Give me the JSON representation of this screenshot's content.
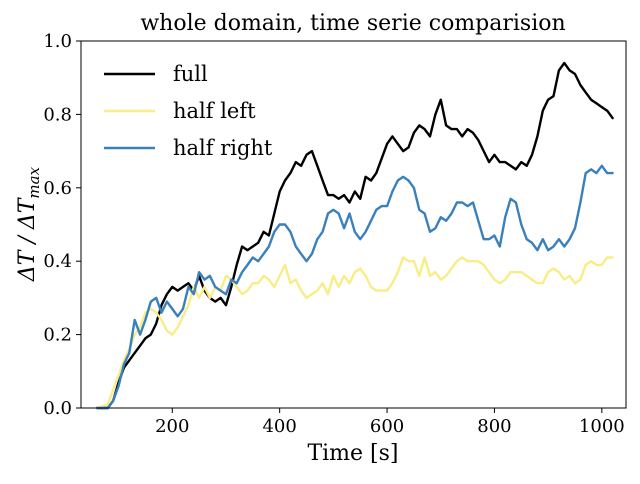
{
  "chart_data": {
    "type": "line",
    "title": "whole domain, time serie comparision",
    "xlabel": "Time [s]",
    "ylabel": "ΔT / ΔT",
    "ylabel_subscript": "max",
    "xlim": [
      30,
      1045
    ],
    "ylim": [
      0.0,
      1.0
    ],
    "xticks": [
      200,
      400,
      600,
      800,
      1000
    ],
    "xtick_labels": [
      "200",
      "400",
      "600",
      "800",
      "1000"
    ],
    "yticks": [
      0.0,
      0.2,
      0.4,
      0.6,
      0.8,
      1.0
    ],
    "ytick_labels": [
      "0.0",
      "0.2",
      "0.4",
      "0.6",
      "0.8",
      "1.0"
    ],
    "grid": false,
    "legend_position": "top-left",
    "series": [
      {
        "name": "full",
        "color": "#000000",
        "x": [
          60,
          80,
          90,
          100,
          110,
          120,
          130,
          140,
          150,
          160,
          170,
          180,
          190,
          200,
          210,
          220,
          230,
          240,
          250,
          260,
          270,
          280,
          290,
          300,
          310,
          320,
          330,
          340,
          350,
          360,
          370,
          380,
          390,
          400,
          410,
          420,
          430,
          440,
          450,
          460,
          470,
          480,
          490,
          500,
          510,
          520,
          530,
          540,
          550,
          560,
          570,
          580,
          590,
          600,
          610,
          620,
          630,
          640,
          650,
          660,
          670,
          680,
          690,
          700,
          710,
          720,
          730,
          740,
          750,
          760,
          770,
          780,
          790,
          800,
          810,
          820,
          830,
          840,
          850,
          860,
          870,
          880,
          890,
          900,
          910,
          920,
          930,
          940,
          950,
          960,
          970,
          980,
          990,
          1000,
          1010,
          1020
        ],
        "y": [
          0.0,
          0.0,
          0.02,
          0.07,
          0.11,
          0.13,
          0.15,
          0.17,
          0.19,
          0.2,
          0.23,
          0.28,
          0.31,
          0.33,
          0.32,
          0.33,
          0.34,
          0.32,
          0.36,
          0.32,
          0.3,
          0.29,
          0.3,
          0.28,
          0.33,
          0.39,
          0.44,
          0.43,
          0.44,
          0.45,
          0.48,
          0.47,
          0.53,
          0.59,
          0.62,
          0.64,
          0.67,
          0.66,
          0.69,
          0.7,
          0.66,
          0.62,
          0.58,
          0.58,
          0.57,
          0.58,
          0.56,
          0.59,
          0.57,
          0.63,
          0.62,
          0.64,
          0.68,
          0.72,
          0.74,
          0.72,
          0.7,
          0.71,
          0.75,
          0.77,
          0.76,
          0.74,
          0.8,
          0.84,
          0.77,
          0.76,
          0.76,
          0.74,
          0.76,
          0.75,
          0.73,
          0.7,
          0.67,
          0.69,
          0.67,
          0.67,
          0.66,
          0.65,
          0.67,
          0.66,
          0.69,
          0.74,
          0.81,
          0.84,
          0.85,
          0.92,
          0.94,
          0.92,
          0.91,
          0.88,
          0.86,
          0.84,
          0.83,
          0.82,
          0.81,
          0.79
        ]
      },
      {
        "name": "half left",
        "color": "#f8ed86",
        "x": [
          60,
          80,
          90,
          100,
          110,
          120,
          130,
          140,
          150,
          160,
          170,
          180,
          190,
          200,
          210,
          220,
          230,
          240,
          250,
          260,
          270,
          280,
          290,
          300,
          310,
          320,
          330,
          340,
          350,
          360,
          370,
          380,
          390,
          400,
          410,
          420,
          430,
          440,
          450,
          460,
          470,
          480,
          490,
          500,
          510,
          520,
          530,
          540,
          550,
          560,
          570,
          580,
          590,
          600,
          610,
          620,
          630,
          640,
          650,
          660,
          670,
          680,
          690,
          700,
          710,
          720,
          730,
          740,
          750,
          760,
          770,
          780,
          790,
          800,
          810,
          820,
          830,
          840,
          850,
          860,
          870,
          880,
          890,
          900,
          910,
          920,
          930,
          940,
          950,
          960,
          970,
          980,
          990,
          1000,
          1010,
          1020
        ],
        "y": [
          0.0,
          0.01,
          0.05,
          0.09,
          0.13,
          0.16,
          0.2,
          0.22,
          0.26,
          0.27,
          0.26,
          0.24,
          0.21,
          0.2,
          0.22,
          0.25,
          0.28,
          0.33,
          0.3,
          0.33,
          0.3,
          0.33,
          0.32,
          0.36,
          0.35,
          0.33,
          0.31,
          0.32,
          0.34,
          0.34,
          0.36,
          0.35,
          0.33,
          0.36,
          0.39,
          0.34,
          0.35,
          0.32,
          0.3,
          0.31,
          0.32,
          0.34,
          0.31,
          0.36,
          0.33,
          0.36,
          0.34,
          0.37,
          0.38,
          0.36,
          0.33,
          0.32,
          0.32,
          0.32,
          0.34,
          0.37,
          0.41,
          0.4,
          0.4,
          0.36,
          0.41,
          0.36,
          0.37,
          0.35,
          0.36,
          0.38,
          0.4,
          0.41,
          0.4,
          0.4,
          0.4,
          0.39,
          0.37,
          0.35,
          0.34,
          0.35,
          0.37,
          0.37,
          0.37,
          0.36,
          0.35,
          0.34,
          0.34,
          0.37,
          0.38,
          0.37,
          0.35,
          0.36,
          0.34,
          0.35,
          0.39,
          0.4,
          0.39,
          0.39,
          0.41,
          0.41
        ]
      },
      {
        "name": "half right",
        "color": "#3a80bb",
        "x": [
          60,
          80,
          90,
          100,
          110,
          120,
          130,
          140,
          150,
          160,
          170,
          180,
          190,
          200,
          210,
          220,
          230,
          240,
          250,
          260,
          270,
          280,
          290,
          300,
          310,
          320,
          330,
          340,
          350,
          360,
          370,
          380,
          390,
          400,
          410,
          420,
          430,
          440,
          450,
          460,
          470,
          480,
          490,
          500,
          510,
          520,
          530,
          540,
          550,
          560,
          570,
          580,
          590,
          600,
          610,
          620,
          630,
          640,
          650,
          660,
          670,
          680,
          690,
          700,
          710,
          720,
          730,
          740,
          750,
          760,
          770,
          780,
          790,
          800,
          810,
          820,
          830,
          840,
          850,
          860,
          870,
          880,
          890,
          900,
          910,
          920,
          930,
          940,
          950,
          960,
          970,
          980,
          990,
          1000,
          1010,
          1020
        ],
        "y": [
          0.0,
          0.0,
          0.02,
          0.06,
          0.12,
          0.15,
          0.24,
          0.2,
          0.24,
          0.29,
          0.3,
          0.26,
          0.29,
          0.27,
          0.25,
          0.27,
          0.33,
          0.31,
          0.37,
          0.35,
          0.36,
          0.33,
          0.32,
          0.31,
          0.35,
          0.34,
          0.37,
          0.39,
          0.41,
          0.4,
          0.42,
          0.44,
          0.48,
          0.5,
          0.5,
          0.48,
          0.44,
          0.42,
          0.4,
          0.42,
          0.46,
          0.48,
          0.53,
          0.54,
          0.53,
          0.49,
          0.53,
          0.48,
          0.46,
          0.48,
          0.51,
          0.54,
          0.55,
          0.55,
          0.59,
          0.62,
          0.63,
          0.62,
          0.6,
          0.54,
          0.53,
          0.48,
          0.49,
          0.52,
          0.51,
          0.53,
          0.56,
          0.56,
          0.55,
          0.56,
          0.51,
          0.46,
          0.46,
          0.47,
          0.44,
          0.52,
          0.57,
          0.56,
          0.5,
          0.46,
          0.45,
          0.43,
          0.46,
          0.43,
          0.44,
          0.46,
          0.44,
          0.46,
          0.49,
          0.56,
          0.64,
          0.65,
          0.64,
          0.66,
          0.64,
          0.64
        ]
      }
    ]
  }
}
